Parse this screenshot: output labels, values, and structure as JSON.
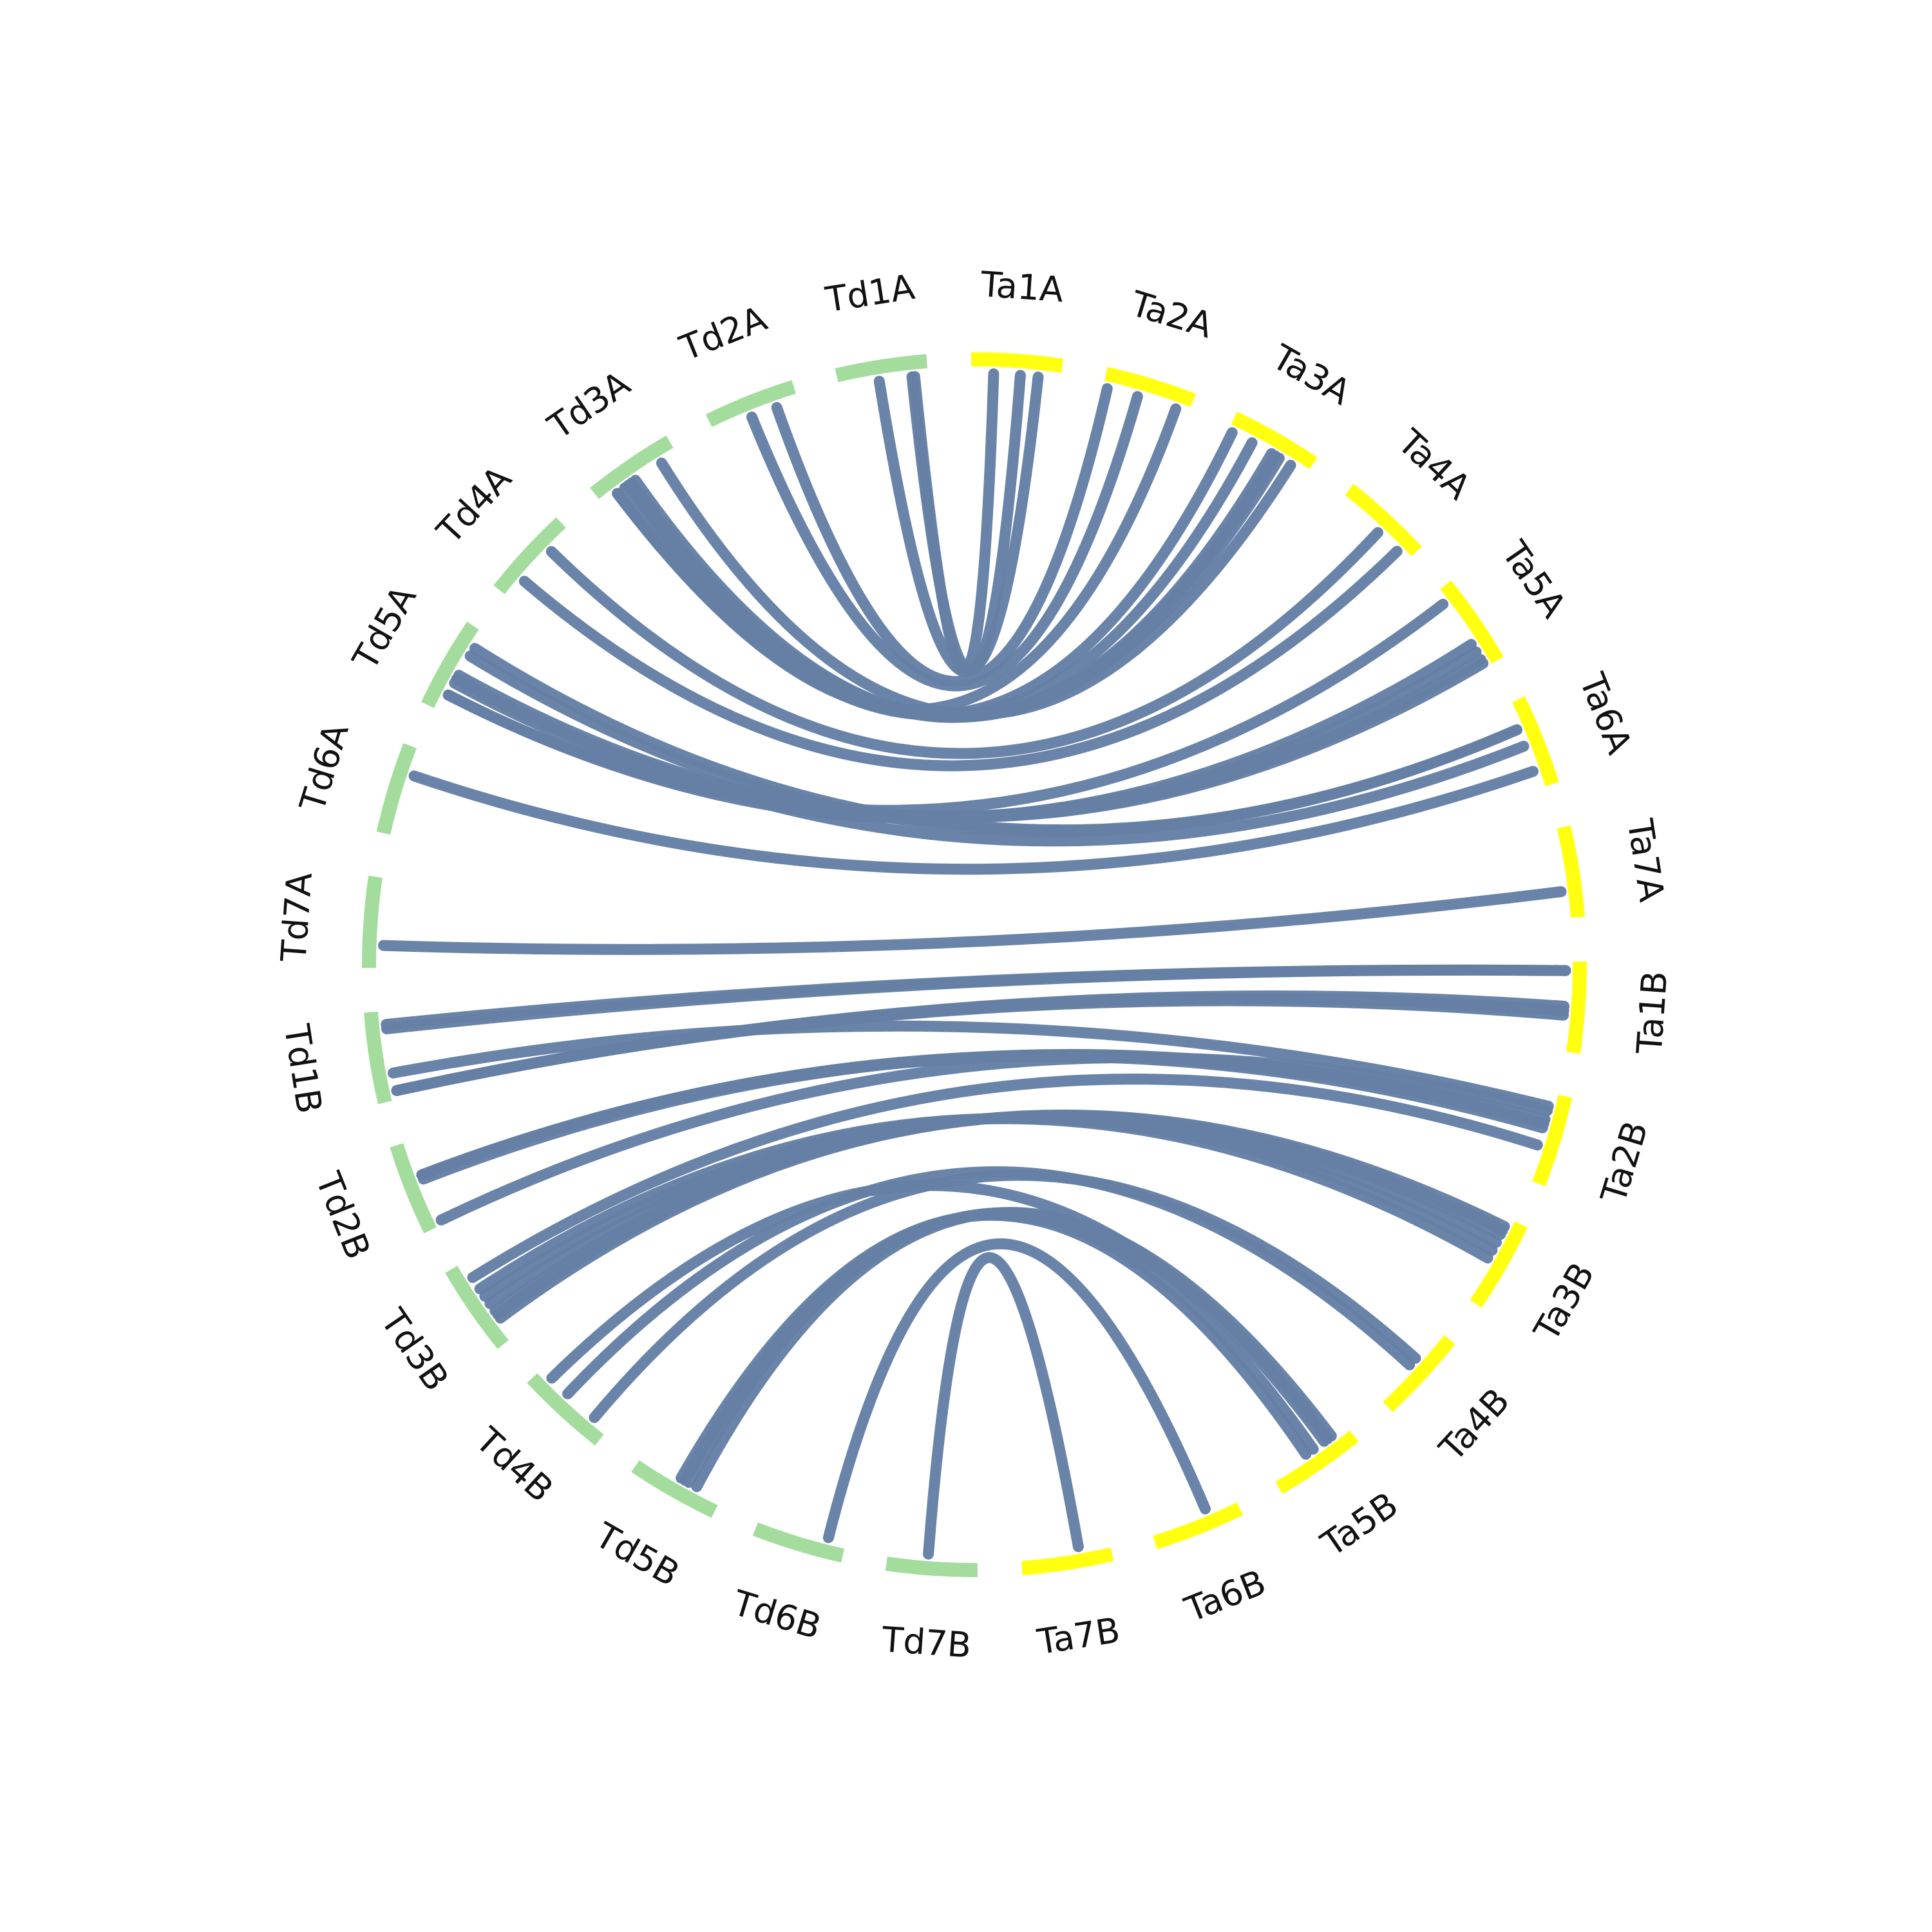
{
  "diagram": {
    "type": "circos-synteny",
    "colors": {
      "group_td": "#a3dc9c",
      "group_ta": "#ffff0f",
      "link": "#657fa5",
      "background": "#ffffff",
      "label": "#111111"
    },
    "segments": [
      {
        "name": "Ta1A",
        "group": "ta"
      },
      {
        "name": "Ta2A",
        "group": "ta"
      },
      {
        "name": "Ta3A",
        "group": "ta"
      },
      {
        "name": "Ta4A",
        "group": "ta"
      },
      {
        "name": "Ta5A",
        "group": "ta"
      },
      {
        "name": "Ta6A",
        "group": "ta"
      },
      {
        "name": "Ta7A",
        "group": "ta"
      },
      {
        "name": "Ta1B",
        "group": "ta"
      },
      {
        "name": "Ta2B",
        "group": "ta"
      },
      {
        "name": "Ta3B",
        "group": "ta"
      },
      {
        "name": "Ta4B",
        "group": "ta"
      },
      {
        "name": "Ta5B",
        "group": "ta"
      },
      {
        "name": "Ta6B",
        "group": "ta"
      },
      {
        "name": "Ta7B",
        "group": "ta"
      },
      {
        "name": "Td7B",
        "group": "td"
      },
      {
        "name": "Td6B",
        "group": "td"
      },
      {
        "name": "Td5B",
        "group": "td"
      },
      {
        "name": "Td4B",
        "group": "td"
      },
      {
        "name": "Td3B",
        "group": "td"
      },
      {
        "name": "Td2B",
        "group": "td"
      },
      {
        "name": "Td1B",
        "group": "td"
      },
      {
        "name": "Td7A",
        "group": "td"
      },
      {
        "name": "Td6A",
        "group": "td"
      },
      {
        "name": "Td5A",
        "group": "td"
      },
      {
        "name": "Td4A",
        "group": "td"
      },
      {
        "name": "Td3A",
        "group": "td"
      },
      {
        "name": "Td2A",
        "group": "td"
      },
      {
        "name": "Td1A",
        "group": "td"
      }
    ],
    "links": [
      [
        "Ta1A",
        0.25,
        "Td1A",
        0.85
      ],
      [
        "Ta1A",
        0.75,
        "Td1A",
        0.45
      ],
      [
        "Ta1A",
        0.55,
        "Td1A",
        0.82
      ],
      [
        "Ta2A",
        0.05,
        "Td2A",
        0.75
      ],
      [
        "Ta2A",
        0.4,
        "Td2A",
        0.45
      ],
      [
        "Ta2A",
        0.85,
        "Td3A",
        0.2
      ],
      [
        "Ta3A",
        0.05,
        "Td3A",
        0.2
      ],
      [
        "Ta3A",
        0.3,
        "Td3A",
        0.3
      ],
      [
        "Ta3A",
        0.55,
        "Td3A",
        0.35
      ],
      [
        "Ta3A",
        0.6,
        "Td3A",
        0.4
      ],
      [
        "Ta3A",
        0.65,
        "Td3A",
        0.45
      ],
      [
        "Ta3A",
        0.8,
        "Td3A",
        0.8
      ],
      [
        "Ta4A",
        0.55,
        "Td4A",
        0.7
      ],
      [
        "Ta4A",
        0.85,
        "Td4A",
        0.25
      ],
      [
        "Ta5A",
        0.15,
        "Td5A",
        0.2
      ],
      [
        "Ta5A",
        0.7,
        "Td5A",
        0.2
      ],
      [
        "Ta5A",
        0.8,
        "Td5A",
        0.35
      ],
      [
        "Ta5A",
        0.9,
        "Td5A",
        0.4
      ],
      [
        "Ta5A",
        0.95,
        "Td5A",
        0.45
      ],
      [
        "Ta6A",
        0.3,
        "Td5A",
        0.7
      ],
      [
        "Ta6A",
        0.3,
        "Td5A",
        0.8
      ],
      [
        "Ta6A",
        0.5,
        "Td5A",
        0.4
      ],
      [
        "Ta6A",
        0.8,
        "Td6A",
        0.7
      ],
      [
        "Ta7A",
        0.7,
        "Td7A",
        0.25
      ],
      [
        "Ta1B",
        0.1,
        "Td1B",
        0.8
      ],
      [
        "Ta1B",
        0.1,
        "Td1B",
        0.85
      ],
      [
        "Ta1B",
        0.5,
        "Td1B",
        0.1
      ],
      [
        "Ta1B",
        0.55,
        "Td1B",
        0.1
      ],
      [
        "Ta1B",
        0.6,
        "Td1B",
        0.1
      ],
      [
        "Ta2B",
        0.15,
        "Td1B",
        0.3
      ],
      [
        "Ta2B",
        0.2,
        "Td2B",
        0.05
      ],
      [
        "Ta2B",
        0.6,
        "Td3B",
        0.8
      ],
      [
        "Ta2B",
        0.3,
        "Td2B",
        0.55
      ],
      [
        "Ta2B",
        0.35,
        "Td2B",
        0.6
      ],
      [
        "Ta2B",
        0.4,
        "Td2B",
        0.6
      ],
      [
        "Ta3B",
        0.1,
        "Td3B",
        0.25
      ],
      [
        "Ta3B",
        0.15,
        "Td3B",
        0.3
      ],
      [
        "Ta3B",
        0.2,
        "Td3B",
        0.35
      ],
      [
        "Ta3B",
        0.3,
        "Td3B",
        0.45
      ],
      [
        "Ta3B",
        0.4,
        "Td3B",
        0.55
      ],
      [
        "Ta3B",
        0.5,
        "Td3B",
        0.65
      ],
      [
        "Ta4B",
        0.4,
        "Td4B",
        0.2
      ],
      [
        "Ta4B",
        0.5,
        "Td4B",
        0.6
      ],
      [
        "Ta5B",
        0.2,
        "Td5B",
        0.3
      ],
      [
        "Ta5B",
        0.3,
        "Td5B",
        0.4
      ],
      [
        "Ta5B",
        0.45,
        "Td5B",
        0.45
      ],
      [
        "Ta5B",
        0.55,
        "Td5B",
        0.5
      ],
      [
        "Ta5B",
        0.25,
        "Td4B",
        0.85
      ],
      [
        "Ta6B",
        0.35,
        "Td6B",
        0.2
      ],
      [
        "Ta7B",
        0.35,
        "Td7B",
        0.55
      ]
    ]
  }
}
